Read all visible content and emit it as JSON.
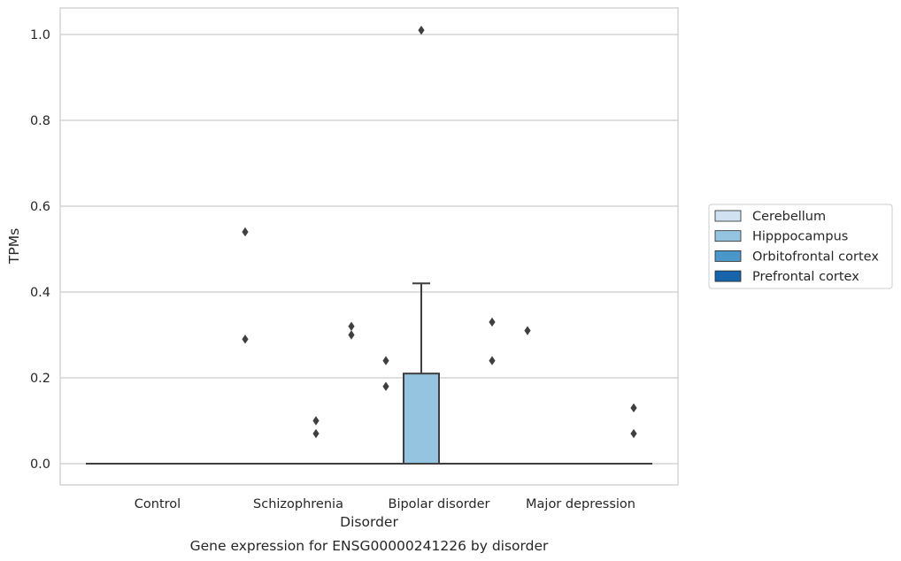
{
  "chart_data": {
    "type": "box",
    "title": "Gene expression for ENSG00000241226 by disorder",
    "xlabel": "Disorder",
    "ylabel": "TPMs",
    "ylim": [
      -0.05,
      1.06
    ],
    "yticks": [
      0.0,
      0.2,
      0.4,
      0.6,
      0.8,
      1.0
    ],
    "ytick_labels": [
      "0.0",
      "0.2",
      "0.4",
      "0.6",
      "0.8",
      "1.0"
    ],
    "grid": "horizontal",
    "legend_placement": "right",
    "categories": [
      "Control",
      "Schizophrenia",
      "Bipolar disorder",
      "Major depression"
    ],
    "series": [
      {
        "name": "Cerebellum",
        "color": "#d0e1f2"
      },
      {
        "name": "Hipppocampus",
        "color": "#94c4df"
      },
      {
        "name": "Orbitofrontal cortex",
        "color": "#4a98c9"
      },
      {
        "name": "Prefrontal cortex",
        "color": "#1764ab"
      }
    ],
    "boxes": [
      {
        "category": "Control",
        "series": "Cerebellum",
        "q1": 0,
        "median": 0,
        "q3": 0,
        "whisker_low": 0,
        "whisker_high": 0
      },
      {
        "category": "Control",
        "series": "Hipppocampus",
        "q1": 0,
        "median": 0,
        "q3": 0,
        "whisker_low": 0,
        "whisker_high": 0
      },
      {
        "category": "Control",
        "series": "Orbitofrontal cortex",
        "q1": 0,
        "median": 0,
        "q3": 0,
        "whisker_low": 0,
        "whisker_high": 0
      },
      {
        "category": "Control",
        "series": "Prefrontal cortex",
        "q1": 0,
        "median": 0,
        "q3": 0,
        "whisker_low": 0,
        "whisker_high": 0
      },
      {
        "category": "Schizophrenia",
        "series": "Cerebellum",
        "q1": 0,
        "median": 0,
        "q3": 0,
        "whisker_low": 0,
        "whisker_high": 0
      },
      {
        "category": "Schizophrenia",
        "series": "Hipppocampus",
        "q1": 0,
        "median": 0,
        "q3": 0,
        "whisker_low": 0,
        "whisker_high": 0
      },
      {
        "category": "Schizophrenia",
        "series": "Orbitofrontal cortex",
        "q1": 0,
        "median": 0,
        "q3": 0,
        "whisker_low": 0,
        "whisker_high": 0
      },
      {
        "category": "Schizophrenia",
        "series": "Prefrontal cortex",
        "q1": 0,
        "median": 0,
        "q3": 0,
        "whisker_low": 0,
        "whisker_high": 0
      },
      {
        "category": "Bipolar disorder",
        "series": "Cerebellum",
        "q1": 0,
        "median": 0,
        "q3": 0,
        "whisker_low": 0,
        "whisker_high": 0
      },
      {
        "category": "Bipolar disorder",
        "series": "Hipppocampus",
        "q1": 0,
        "median": 0,
        "q3": 0.21,
        "whisker_low": 0,
        "whisker_high": 0.42
      },
      {
        "category": "Bipolar disorder",
        "series": "Orbitofrontal cortex",
        "q1": 0,
        "median": 0,
        "q3": 0,
        "whisker_low": 0,
        "whisker_high": 0
      },
      {
        "category": "Bipolar disorder",
        "series": "Prefrontal cortex",
        "q1": 0,
        "median": 0,
        "q3": 0,
        "whisker_low": 0,
        "whisker_high": 0
      },
      {
        "category": "Major depression",
        "series": "Cerebellum",
        "q1": 0,
        "median": 0,
        "q3": 0,
        "whisker_low": 0,
        "whisker_high": 0
      },
      {
        "category": "Major depression",
        "series": "Hipppocampus",
        "q1": 0,
        "median": 0,
        "q3": 0,
        "whisker_low": 0,
        "whisker_high": 0
      },
      {
        "category": "Major depression",
        "series": "Orbitofrontal cortex",
        "q1": 0,
        "median": 0,
        "q3": 0,
        "whisker_low": 0,
        "whisker_high": 0
      },
      {
        "category": "Major depression",
        "series": "Prefrontal cortex",
        "q1": 0,
        "median": 0,
        "q3": 0,
        "whisker_low": 0,
        "whisker_high": 0
      }
    ],
    "outliers": [
      {
        "category": "Schizophrenia",
        "series": "Cerebellum",
        "values": [
          0.54,
          0.29
        ]
      },
      {
        "category": "Schizophrenia",
        "series": "Orbitofrontal cortex",
        "values": [
          0.1,
          0.07
        ]
      },
      {
        "category": "Schizophrenia",
        "series": "Prefrontal cortex",
        "values": [
          0.32,
          0.3
        ]
      },
      {
        "category": "Bipolar disorder",
        "series": "Cerebellum",
        "values": [
          0.24,
          0.18
        ]
      },
      {
        "category": "Bipolar disorder",
        "series": "Hipppocampus",
        "values": [
          1.01
        ]
      },
      {
        "category": "Bipolar disorder",
        "series": "Prefrontal cortex",
        "values": [
          0.33,
          0.24
        ]
      },
      {
        "category": "Major depression",
        "series": "Cerebellum",
        "values": [
          0.31
        ]
      },
      {
        "category": "Major depression",
        "series": "Prefrontal cortex",
        "values": [
          0.13,
          0.07
        ]
      }
    ]
  }
}
